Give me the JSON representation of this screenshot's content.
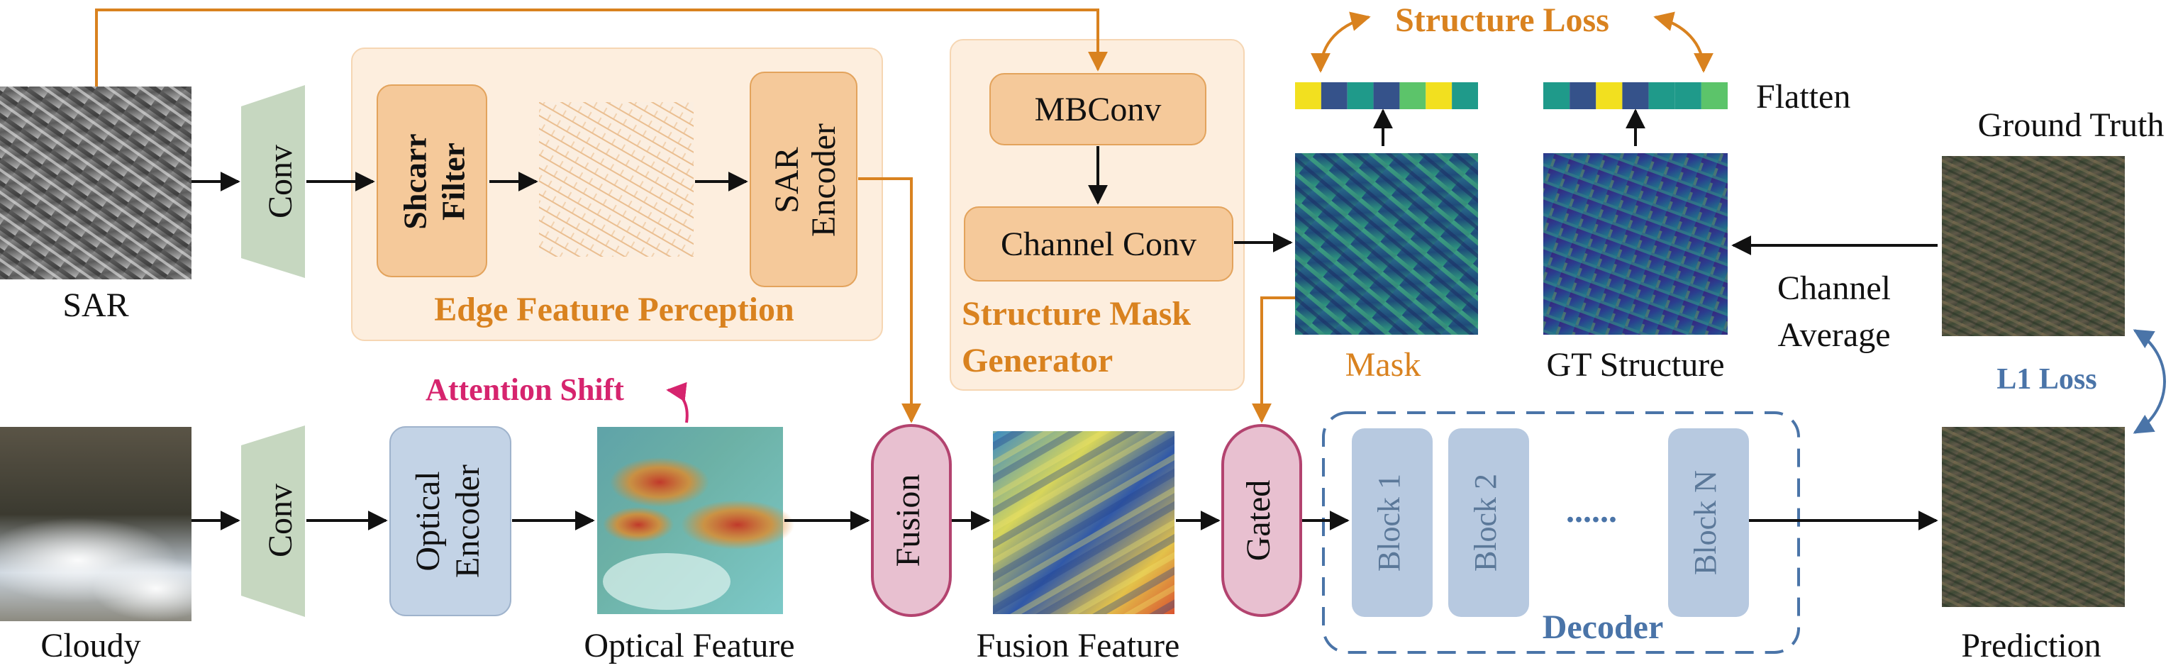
{
  "images": {
    "sar": "SAR",
    "cloudy": "Cloudy",
    "optical_feature": "Optical Feature",
    "fusion_feature": "Fusion Feature",
    "mask": "Mask",
    "gt_structure": "GT Structure",
    "ground_truth": "Ground Truth",
    "prediction": "Prediction"
  },
  "modules": {
    "conv_top": "Conv",
    "conv_bottom": "Conv",
    "shcarr_filter_line1": "Shcarr",
    "shcarr_filter_line2": "Filter",
    "sar_encoder_line1": "SAR",
    "sar_encoder_line2": "Encoder",
    "optical_encoder_line1": "Optical",
    "optical_encoder_line2": "Encoder",
    "mbconv": "MBConv",
    "channel_conv": "Channel Conv",
    "fusion": "Fusion",
    "gated": "Gated",
    "block1": "Block 1",
    "block2": "Block 2",
    "blockn": "Block N",
    "dots": "......"
  },
  "groups": {
    "edge_feature_perception": "Edge Feature Perception",
    "structure_mask_line1": "Structure Mask",
    "structure_mask_line2": "Generator",
    "decoder": "Decoder"
  },
  "annotations": {
    "structure_loss": "Structure Loss",
    "flatten": "Flatten",
    "attention_shift": "Attention Shift",
    "channel_average_line1": "Channel",
    "channel_average_line2": "Average",
    "l1_loss": "L1 Loss"
  },
  "colors": {
    "orange_arrow": "#d9821f",
    "module_fill": "#f5c99a",
    "module_stroke": "#e3a35c",
    "group_fill": "#fdeede",
    "conv_fill": "#c6d7c0",
    "encoder_fill": "#c3d3e6",
    "fusion_fill": "#e8c0d0",
    "fusion_stroke": "#b3436f",
    "block_fill": "#b7c9e0",
    "decoder_dash": "#4a74a8",
    "attention_color": "#d6246e"
  },
  "flatten_bars": {
    "mask": [
      "#f2e01f",
      "#35528a",
      "#1f9a8a",
      "#35528a",
      "#5cc46a",
      "#f2e01f",
      "#1f9a8a"
    ],
    "gt": [
      "#1f9a8a",
      "#35528a",
      "#f2e01f",
      "#35528a",
      "#1f9a8a",
      "#1f9a8a",
      "#5cc46a"
    ]
  }
}
